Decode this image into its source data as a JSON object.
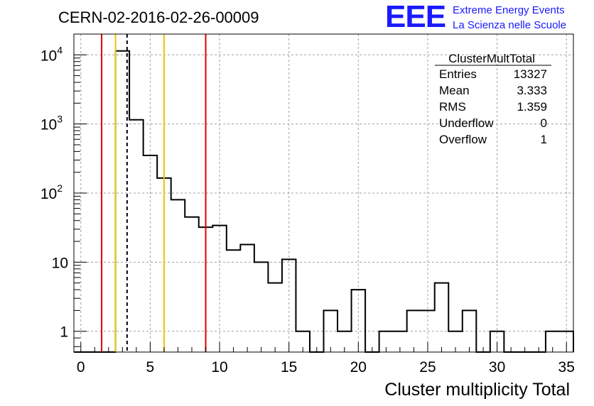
{
  "chart_data": {
    "type": "bar",
    "title": "CERN-02-2016-02-26-00009",
    "xlabel": "Cluster multiplicity Total",
    "ylabel": "",
    "xlim": [
      -0.5,
      35.5
    ],
    "ylim": [
      0.5,
      20000
    ],
    "yscale": "log",
    "grid": true,
    "bins": {
      "low": -0.5,
      "width": 1,
      "count": 36
    },
    "values": [
      0,
      0,
      0,
      11400,
      1150,
      350,
      165,
      80,
      45,
      32,
      34,
      15,
      18,
      10,
      5,
      11,
      1,
      0,
      2,
      1,
      4,
      0,
      1,
      1,
      2,
      2,
      5,
      1,
      2,
      0,
      1,
      0,
      0,
      0,
      1,
      1
    ],
    "xticks": [
      0,
      5,
      10,
      15,
      20,
      25,
      30,
      35
    ],
    "xtick_labels": [
      "0",
      "5",
      "10",
      "15",
      "20",
      "25",
      "30",
      "35"
    ],
    "yticks": [
      {
        "value": 1,
        "base": "1",
        "exp": ""
      },
      {
        "value": 10,
        "base": "10",
        "exp": ""
      },
      {
        "value": 100,
        "base": "10",
        "exp": "2"
      },
      {
        "value": 1000,
        "base": "10",
        "exp": "3"
      },
      {
        "value": 10000,
        "base": "10",
        "exp": "4"
      }
    ],
    "vlines": [
      {
        "x": 1.5,
        "color": "#e00000",
        "style": "solid"
      },
      {
        "x": 2.5,
        "color": "#f2c200",
        "style": "solid"
      },
      {
        "x": 3.333,
        "color": "#000000",
        "style": "dashed"
      },
      {
        "x": 6.0,
        "color": "#f2c200",
        "style": "solid"
      },
      {
        "x": 9.0,
        "color": "#e00000",
        "style": "solid"
      }
    ],
    "stats_box": {
      "title": "ClusterMultTotal",
      "rows": [
        {
          "label": "Entries",
          "value": "13327"
        },
        {
          "label": "Mean",
          "value": "3.333"
        },
        {
          "label": "RMS",
          "value": "1.359"
        },
        {
          "label": "Underflow",
          "value": "0"
        },
        {
          "label": "Overflow",
          "value": "1"
        }
      ]
    }
  },
  "logo": {
    "mark": "EEE",
    "line1": "Extreme Energy Events",
    "line2": "La Scienza nelle Scuole"
  }
}
